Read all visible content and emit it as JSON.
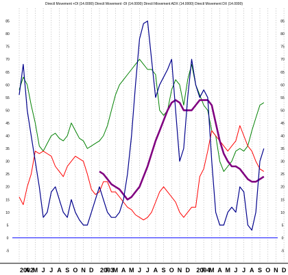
{
  "chart_data": {
    "type": "line",
    "title": "Directl Movement +DI (14.0000) Directl Movement -DI (14.0000) Directl Movement ADX (14.0000) Directl Movement DX (14.0000)",
    "colors": {
      "plus_di": "#008000",
      "minus_di": "#ff0000",
      "adx": "#800080",
      "dx": "#00008b",
      "zero_line": "#0000ff"
    },
    "ylim": [
      -10,
      90
    ],
    "yticks": [
      -5,
      0,
      5,
      10,
      15,
      20,
      25,
      30,
      35,
      40,
      45,
      50,
      55,
      60,
      65,
      70,
      75,
      80,
      85
    ],
    "xticks": [
      "2002",
      "A",
      "M",
      "J",
      "J",
      "A",
      "S",
      "O",
      "N",
      "D",
      "2003",
      "F",
      "M",
      "A",
      "M",
      "J",
      "J",
      "A",
      "S",
      "O",
      "N",
      "D",
      "2004",
      "F",
      "M",
      "A",
      "M",
      "J",
      "J",
      "A",
      "S",
      "O",
      "N",
      "D"
    ],
    "grid": true,
    "x_months": [
      0,
      0.5,
      1,
      1.5,
      2,
      2.5,
      3,
      3.5,
      4,
      4.5,
      5,
      5.5,
      6,
      6.5,
      7,
      7.5,
      8,
      8.5,
      9,
      9.5,
      10,
      10.5,
      11,
      11.5,
      12,
      12.5,
      13,
      13.5,
      14,
      14.5,
      15,
      15.5,
      16,
      16.5,
      17,
      17.5,
      18,
      18.5,
      19,
      19.5,
      20,
      20.5,
      21,
      21.5,
      22,
      22.5,
      23,
      23.5,
      24,
      24.5,
      25,
      25.5,
      26,
      26.5,
      27,
      27.5,
      28,
      28.5,
      29,
      29.5,
      30,
      30.5
    ],
    "series": [
      {
        "key": "plus_di",
        "values": [
          58,
          63,
          60,
          52,
          45,
          36,
          34,
          37,
          40,
          41,
          39,
          38,
          40,
          45,
          42,
          39,
          38,
          35,
          36,
          37,
          38,
          40,
          44,
          50,
          56,
          60,
          62,
          64,
          66,
          68,
          70,
          68,
          66,
          66,
          64,
          50,
          48,
          50,
          58,
          62,
          60,
          52,
          62,
          68,
          60,
          56,
          52,
          50,
          42,
          40,
          30,
          26,
          28,
          30,
          34,
          35,
          34,
          36,
          42,
          47,
          52,
          53
        ]
      },
      {
        "key": "minus_di",
        "values": [
          16,
          13,
          20,
          25,
          34,
          33,
          34,
          33,
          32,
          28,
          26,
          24,
          28,
          30,
          32,
          31,
          30,
          25,
          19,
          17,
          18,
          22,
          22,
          18,
          18,
          16,
          14,
          12,
          11,
          9,
          8,
          7,
          8,
          10,
          14,
          18,
          20,
          18,
          16,
          14,
          10,
          8,
          10,
          12,
          12,
          24,
          27,
          34,
          42,
          40,
          38,
          36,
          34,
          36,
          38,
          44,
          40,
          36,
          34,
          30,
          27,
          26
        ]
      },
      {
        "key": "adx",
        "values": [
          null,
          null,
          null,
          null,
          null,
          null,
          null,
          null,
          null,
          null,
          null,
          null,
          null,
          null,
          null,
          null,
          null,
          null,
          null,
          null,
          26,
          25,
          23,
          21,
          20,
          19,
          17,
          15,
          16,
          18,
          20,
          24,
          28,
          33,
          38,
          42,
          46,
          50,
          53,
          54,
          53,
          50,
          50,
          50,
          52,
          54,
          54,
          54,
          52,
          45,
          38,
          33,
          30,
          28,
          28,
          27,
          25,
          23,
          22,
          22,
          23,
          24
        ]
      },
      {
        "key": "dx",
        "values": [
          56,
          68,
          50,
          40,
          30,
          20,
          8,
          10,
          18,
          20,
          15,
          10,
          8,
          15,
          10,
          7,
          5,
          5,
          10,
          15,
          20,
          15,
          10,
          8,
          8,
          10,
          15,
          25,
          40,
          60,
          78,
          84,
          85,
          70,
          55,
          60,
          63,
          66,
          70,
          50,
          30,
          35,
          55,
          70,
          60,
          55,
          58,
          55,
          30,
          10,
          5,
          5,
          10,
          12,
          10,
          20,
          18,
          5,
          3,
          10,
          30,
          35
        ]
      }
    ]
  }
}
